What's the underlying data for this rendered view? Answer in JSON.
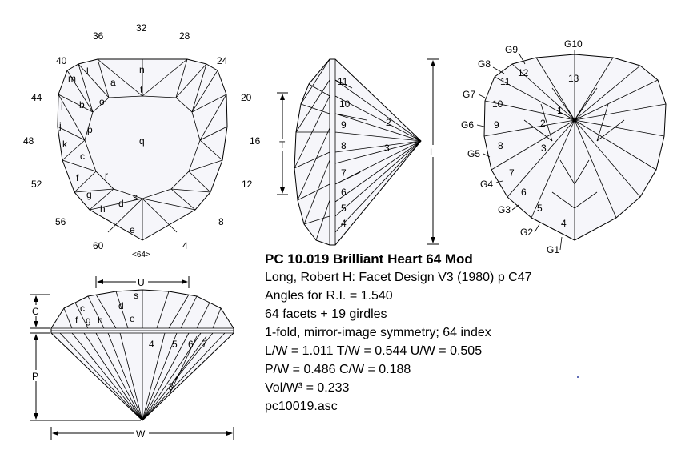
{
  "title": "PC 10.019 Brilliant Heart 64 Mod",
  "info_lines": [
    "Long, Robert H: Facet Design V3 (1980) p C47",
    "Angles for R.I. = 1.540",
    "64 facets + 19 girdles",
    "1-fold, mirror-image symmetry; 64 index",
    "L/W = 1.011 T/W = 0.544 U/W = 0.505",
    "P/W = 0.486 C/W = 0.188",
    "Vol/W³ = 0.233",
    "pc10019.asc"
  ],
  "index_marks": [
    "32",
    "28",
    "24",
    "20",
    "16",
    "12",
    "8",
    "4",
    "<64>",
    "60",
    "56",
    "52",
    "48",
    "44",
    "40",
    "36"
  ],
  "crown_facets": [
    "n",
    "t",
    "a",
    "l",
    "m",
    "o",
    "b",
    "i",
    "j",
    "p",
    "k",
    "q",
    "c",
    "f",
    "r",
    "g",
    "h",
    "d",
    "s",
    "e"
  ],
  "side_pavilion_facets": [
    "11",
    "10",
    "9",
    "8",
    "7",
    "6",
    "5",
    "4",
    "2",
    "3"
  ],
  "side_dims": {
    "t": "T",
    "l": "L"
  },
  "pavilion_facets": [
    "13",
    "12",
    "11",
    "10",
    "9",
    "8",
    "7",
    "6",
    "5",
    "4",
    "1",
    "2",
    "3"
  ],
  "girdle_labels": [
    "G10",
    "G9",
    "G8",
    "G7",
    "G6",
    "G5",
    "G4",
    "G3",
    "G2",
    "G1"
  ],
  "elevation_crown_facets": [
    "s",
    "c",
    "d",
    "f",
    "g",
    "h",
    "e"
  ],
  "elevation_pavilion_facets": [
    "4",
    "5",
    "6",
    "7",
    "3"
  ],
  "elevation_dims": {
    "u": "U",
    "c": "C",
    "p": "P",
    "w": "W"
  }
}
